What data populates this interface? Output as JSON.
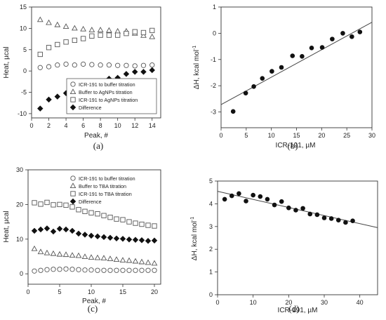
{
  "chart_data": [
    {
      "id": "a",
      "type": "scatter",
      "panel_label": "(a)",
      "xlabel": "Peak, #",
      "ylabel": "Heat, µcal",
      "xlim": [
        0,
        15
      ],
      "ylim": [
        -11,
        15
      ],
      "xticks": [
        0,
        2,
        4,
        6,
        8,
        10,
        12,
        14
      ],
      "yticks": [
        -10,
        -5,
        0,
        5,
        10,
        15
      ],
      "legend_position": "bottom-right",
      "series": [
        {
          "name": "ICR-191 to buffer titration",
          "marker": "circle-open",
          "x": [
            1,
            2,
            3,
            4,
            5,
            6,
            7,
            8,
            9,
            10,
            11,
            12,
            13,
            14
          ],
          "y": [
            0.8,
            1.0,
            1.4,
            1.6,
            1.4,
            1.6,
            1.5,
            1.4,
            1.4,
            1.3,
            1.3,
            1.2,
            1.3,
            1.4
          ]
        },
        {
          "name": "Buffer to AgNPs titration",
          "marker": "triangle-open",
          "x": [
            1,
            2,
            3,
            4,
            5,
            6,
            7,
            8,
            9,
            10,
            11,
            12,
            13,
            14
          ],
          "y": [
            12.0,
            11.3,
            10.8,
            10.4,
            10.0,
            9.8,
            9.6,
            9.6,
            9.5,
            9.3,
            9.3,
            8.8,
            8.3,
            8.0
          ]
        },
        {
          "name": "ICR-191 to AgNPs titration",
          "marker": "square-open",
          "x": [
            1,
            2,
            3,
            4,
            5,
            6,
            7,
            8,
            9,
            10,
            11,
            12,
            13,
            14
          ],
          "y": [
            3.9,
            5.5,
            6.2,
            6.8,
            7.2,
            7.6,
            8.2,
            8.4,
            8.4,
            8.4,
            8.8,
            9.2,
            9.0,
            9.5
          ]
        },
        {
          "name": "Difference",
          "marker": "diamond-filled",
          "x": [
            1,
            2,
            3,
            4,
            5,
            6,
            7,
            8,
            9,
            10,
            11,
            12,
            13,
            14
          ],
          "y": [
            -8.8,
            -6.7,
            -6.0,
            -5.2,
            -4.3,
            -3.9,
            -2.8,
            -2.6,
            -1.8,
            -1.6,
            -0.7,
            -0.2,
            -0.2,
            0.2
          ]
        }
      ]
    },
    {
      "id": "b",
      "type": "scatter",
      "panel_label": "(b)",
      "xlabel": "ICR-191, µM",
      "ylabel": "ΔH, kcal mol",
      "ylabel_sup": "-1",
      "xlim": [
        0,
        30
      ],
      "ylim": [
        -3.6,
        1
      ],
      "xticks": [
        0,
        5,
        10,
        15,
        20,
        25,
        30
      ],
      "yticks": [
        -3,
        -2,
        -1,
        0,
        1
      ],
      "fit_line": {
        "x": [
          0,
          30
        ],
        "y": [
          -2.72,
          0.42
        ]
      },
      "series": [
        {
          "name": "",
          "marker": "circle-filled",
          "x": [
            2.4,
            4.9,
            6.5,
            8.2,
            10.1,
            12.0,
            14.2,
            16.1,
            18.0,
            20.1,
            22.1,
            24.2,
            26.0,
            27.6
          ],
          "y": [
            -2.98,
            -2.28,
            -2.03,
            -1.72,
            -1.45,
            -1.3,
            -0.86,
            -0.88,
            -0.56,
            -0.54,
            -0.22,
            0.0,
            -0.13,
            0.05
          ]
        }
      ]
    },
    {
      "id": "c",
      "type": "scatter",
      "panel_label": "(c)",
      "xlabel": "Peak, #",
      "ylabel": "Heat, µcal",
      "xlim": [
        0,
        21
      ],
      "ylim": [
        -3,
        30
      ],
      "xticks": [
        0,
        5,
        10,
        15,
        20
      ],
      "yticks": [
        0,
        10,
        20,
        30
      ],
      "legend_position": "top-right",
      "series": [
        {
          "name": "ICR-191 to buffer titration",
          "marker": "circle-open",
          "x": [
            1,
            2,
            3,
            4,
            5,
            6,
            7,
            8,
            9,
            10,
            11,
            12,
            13,
            14,
            15,
            16,
            17,
            18,
            19,
            20
          ],
          "y": [
            0.8,
            1.0,
            1.2,
            1.3,
            1.3,
            1.4,
            1.3,
            1.2,
            1.1,
            1.1,
            1.0,
            1.0,
            1.0,
            1.0,
            1.0,
            1.0,
            1.0,
            1.0,
            1.0,
            1.0
          ]
        },
        {
          "name": "Buffer to TBA titration",
          "marker": "triangle-open",
          "x": [
            1,
            2,
            3,
            4,
            5,
            6,
            7,
            8,
            9,
            10,
            11,
            12,
            13,
            14,
            15,
            16,
            17,
            18,
            19,
            20
          ],
          "y": [
            7.2,
            6.3,
            6.0,
            5.8,
            5.6,
            5.5,
            5.3,
            5.2,
            4.9,
            4.7,
            4.6,
            4.5,
            4.3,
            4.1,
            3.9,
            3.8,
            3.6,
            3.4,
            3.2,
            3.0
          ]
        },
        {
          "name": "ICR-191 to TBA titration",
          "marker": "square-open",
          "x": [
            1,
            2,
            3,
            4,
            5,
            6,
            7,
            8,
            9,
            10,
            11,
            12,
            13,
            14,
            15,
            16,
            17,
            18,
            19,
            20
          ],
          "y": [
            20.5,
            20.1,
            20.6,
            19.9,
            20.0,
            19.8,
            19.3,
            18.5,
            18.0,
            17.6,
            17.3,
            16.8,
            16.3,
            15.8,
            15.6,
            15.0,
            14.6,
            14.3,
            14.0,
            13.8
          ]
        },
        {
          "name": "Difference",
          "marker": "diamond-filled",
          "x": [
            1,
            2,
            3,
            4,
            5,
            6,
            7,
            8,
            9,
            10,
            11,
            12,
            13,
            14,
            15,
            16,
            17,
            18,
            19,
            20
          ],
          "y": [
            12.4,
            12.8,
            13.1,
            12.2,
            13.0,
            12.8,
            12.4,
            11.6,
            11.3,
            11.0,
            10.8,
            10.6,
            10.4,
            10.2,
            10.1,
            9.9,
            9.8,
            9.7,
            9.5,
            9.6
          ]
        }
      ]
    },
    {
      "id": "d",
      "type": "scatter",
      "panel_label": "(d)",
      "xlabel": "ICR-191, µM",
      "ylabel": "ΔH, kcal mol",
      "ylabel_sup": "-1",
      "xlim": [
        0,
        45
      ],
      "ylim": [
        0,
        5
      ],
      "xticks": [
        0,
        10,
        20,
        30,
        40
      ],
      "yticks": [
        0,
        1,
        2,
        3,
        4,
        5
      ],
      "fit_line": {
        "x": [
          0,
          45
        ],
        "y": [
          4.55,
          2.95
        ]
      },
      "series": [
        {
          "name": "",
          "marker": "circle-filled",
          "x": [
            2,
            4,
            6,
            8,
            10,
            12,
            14,
            16,
            18,
            20,
            22,
            24,
            26,
            28,
            30,
            32,
            34,
            36,
            38
          ],
          "y": [
            4.2,
            4.35,
            4.45,
            4.12,
            4.38,
            4.32,
            4.2,
            3.95,
            4.1,
            3.82,
            3.72,
            3.8,
            3.55,
            3.52,
            3.38,
            3.35,
            3.28,
            3.18,
            3.25
          ]
        }
      ]
    }
  ]
}
